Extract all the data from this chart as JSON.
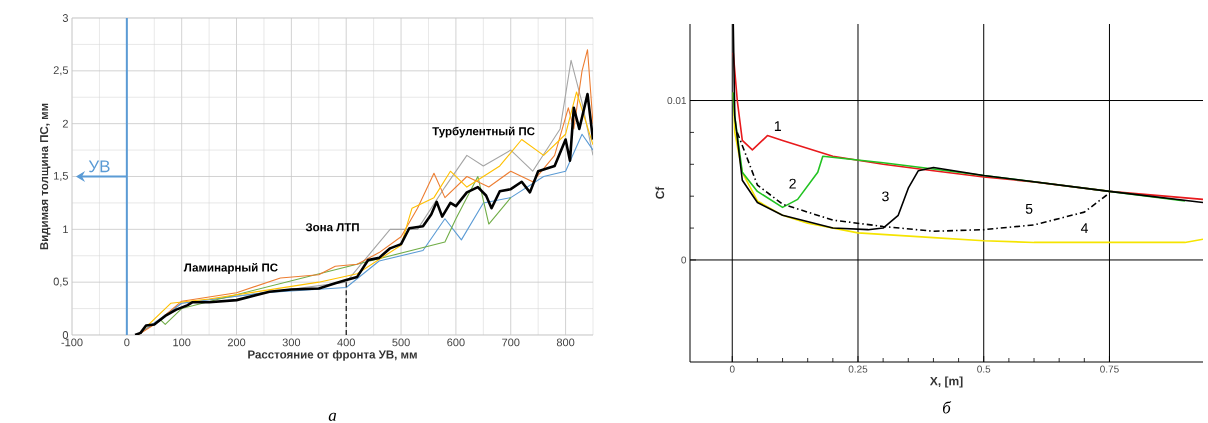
{
  "chart_data": [
    {
      "type": "line",
      "xlabel": "Расстояние от фронта УВ, мм",
      "ylabel": "Видимая толщина ПС, мм",
      "xlim": [
        -100,
        850
      ],
      "xticks": [
        -100,
        0,
        100,
        200,
        300,
        400,
        500,
        600,
        700,
        800
      ],
      "ylim": [
        0,
        3
      ],
      "yticks": [
        0,
        {
          "value": 0.5,
          "label": "0,5"
        },
        1,
        {
          "value": 1.5,
          "label": "1,5"
        },
        2,
        {
          "value": 2.5,
          "label": "2,5"
        },
        3
      ],
      "grid": true,
      "ref_lines": [
        {
          "axis": "x",
          "value": 0,
          "label": "УВ",
          "color": "#5b9bd5"
        }
      ],
      "annotations": [
        "Ламинарный  ПС",
        "Зона  ЛТП",
        "Турбулентный  ПС",
        "а"
      ],
      "series": [
        {
          "color": "#a5a5a5",
          "x": [
            20,
            100,
            250,
            400,
            480,
            530,
            580,
            620,
            650,
            700,
            740,
            790,
            810,
            830,
            850
          ],
          "values": [
            0,
            0.3,
            0.4,
            0.5,
            1.0,
            1.0,
            1.4,
            1.7,
            1.6,
            1.75,
            1.55,
            1.95,
            2.6,
            2.2,
            1.7
          ]
        },
        {
          "color": "#5b9bd5",
          "x": [
            20,
            100,
            250,
            400,
            460,
            540,
            580,
            610,
            650,
            700,
            760,
            800,
            830,
            850
          ],
          "values": [
            0,
            0.3,
            0.4,
            0.45,
            0.7,
            0.8,
            1.1,
            0.9,
            1.25,
            1.3,
            1.5,
            1.55,
            1.9,
            1.75
          ]
        },
        {
          "color": "#70ad47",
          "x": [
            60,
            70,
            100,
            580,
            600,
            640,
            660,
            700
          ],
          "values": [
            0.15,
            0.1,
            0.25,
            0.88,
            1.1,
            1.5,
            1.05,
            1.3
          ]
        },
        {
          "color": "#ed7d31",
          "x": [
            20,
            50,
            100,
            200,
            280,
            350,
            380,
            420,
            460,
            500,
            530,
            560,
            580,
            620,
            660,
            700,
            740,
            780,
            805,
            815,
            830,
            840,
            850
          ],
          "values": [
            0,
            0.1,
            0.32,
            0.4,
            0.54,
            0.57,
            0.65,
            0.67,
            0.78,
            0.93,
            1.2,
            1.53,
            1.3,
            1.5,
            1.4,
            1.55,
            1.45,
            1.7,
            2.15,
            1.95,
            2.5,
            2.7,
            2.0
          ]
        },
        {
          "color": "#ffc000",
          "x": [
            20,
            80,
            150,
            250,
            350,
            420,
            500,
            520,
            560,
            590,
            620,
            680,
            720,
            760,
            800,
            820,
            850
          ],
          "values": [
            0,
            0.3,
            0.34,
            0.42,
            0.5,
            0.58,
            0.85,
            1.2,
            1.3,
            1.55,
            1.4,
            1.6,
            1.85,
            1.7,
            1.9,
            2.3,
            1.8
          ]
        },
        {
          "color": "#000000",
          "x": [
            15,
            25,
            35,
            50,
            70,
            90,
            110,
            120,
            150,
            200,
            230,
            260,
            300,
            350,
            380,
            400,
            420,
            440,
            460,
            480,
            500,
            515,
            540,
            555,
            565,
            575,
            590,
            600,
            620,
            640,
            655,
            665,
            680,
            700,
            720,
            735,
            750,
            780,
            800,
            808,
            815,
            825,
            840,
            850
          ],
          "values": [
            0,
            0.02,
            0.09,
            0.1,
            0.18,
            0.24,
            0.28,
            0.31,
            0.31,
            0.33,
            0.37,
            0.41,
            0.43,
            0.44,
            0.49,
            0.52,
            0.55,
            0.71,
            0.73,
            0.82,
            0.86,
            1.01,
            1.03,
            1.14,
            1.26,
            1.12,
            1.25,
            1.22,
            1.35,
            1.4,
            1.32,
            1.2,
            1.36,
            1.38,
            1.45,
            1.35,
            1.55,
            1.6,
            1.85,
            1.65,
            2.15,
            1.95,
            2.28,
            1.85
          ]
        },
        {
          "color": "#000000",
          "line_style": "dashed",
          "x": [
            400,
            400
          ],
          "values": [
            0,
            0.52
          ]
        }
      ]
    },
    {
      "type": "line",
      "xlabel": "X, [m]",
      "ylabel": "Cf",
      "xlim": [
        -0.084,
        0.936
      ],
      "xticks": [
        0,
        0.25,
        0.5,
        0.75
      ],
      "ylim": [
        -0.0064,
        0.0148
      ],
      "yticks": [
        0,
        0.01
      ],
      "grid": true,
      "annotations": [
        "1",
        "2",
        "3",
        "4",
        "5",
        "б"
      ],
      "series": [
        {
          "color": "#f5e400",
          "x": [
            0.002,
            0.005,
            0.02,
            0.05,
            0.1,
            0.15,
            0.25,
            0.4,
            0.5,
            0.6,
            0.75,
            0.9,
            0.936
          ],
          "values": [
            0.0105,
            0.008,
            0.0055,
            0.0037,
            0.0028,
            0.0023,
            0.0017,
            0.0014,
            0.0012,
            0.0011,
            0.0011,
            0.0011,
            0.0013
          ]
        },
        {
          "color": "#e8191c",
          "x": [
            0.002,
            0.01,
            0.02,
            0.04,
            0.07,
            0.1,
            0.2,
            0.3,
            0.4,
            0.5,
            0.6,
            0.75,
            0.936
          ],
          "values": [
            0.013,
            0.01,
            0.0075,
            0.0069,
            0.0078,
            0.0075,
            0.0065,
            0.006,
            0.0056,
            0.0052,
            0.0049,
            0.0043,
            0.0038
          ]
        },
        {
          "color": "#22c322",
          "x": [
            0.002,
            0.005,
            0.02,
            0.05,
            0.1,
            0.13,
            0.17,
            0.18,
            0.3,
            0.4,
            0.5,
            0.75,
            0.9
          ],
          "values": [
            0.0105,
            0.009,
            0.0055,
            0.0043,
            0.0033,
            0.0038,
            0.0055,
            0.0065,
            0.0061,
            0.0057,
            0.0053,
            0.0043,
            0.0037
          ]
        },
        {
          "color": "#000000",
          "line_style": "dashdot",
          "x": [
            0.01,
            0.05,
            0.1,
            0.2,
            0.3,
            0.4,
            0.5,
            0.6,
            0.7,
            0.75
          ],
          "values": [
            0.008,
            0.0047,
            0.0035,
            0.0025,
            0.0021,
            0.0018,
            0.0019,
            0.0022,
            0.003,
            0.0042
          ]
        },
        {
          "color": "#000000",
          "x": [
            0.002,
            0.005,
            0.02,
            0.05,
            0.1,
            0.2,
            0.27,
            0.3,
            0.33,
            0.35,
            0.37,
            0.4,
            0.5,
            0.75,
            0.936
          ],
          "values": [
            0.0148,
            0.009,
            0.005,
            0.0036,
            0.0028,
            0.002,
            0.0019,
            0.002,
            0.0028,
            0.0045,
            0.0056,
            0.0058,
            0.0053,
            0.0043,
            0.0036
          ]
        }
      ]
    }
  ]
}
